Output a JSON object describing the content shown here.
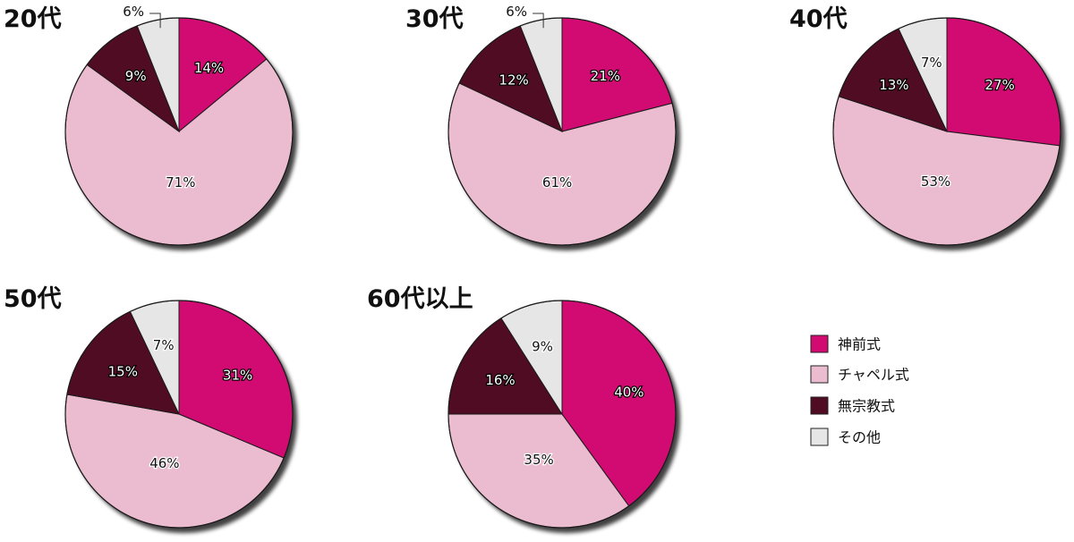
{
  "legend": [
    {
      "label": "神前式",
      "color": "#d10b72"
    },
    {
      "label": "チャペル式",
      "color": "#ebbcd0"
    },
    {
      "label": "無宗教式",
      "color": "#4f0c22"
    },
    {
      "label": "その他",
      "color": "#e6e6e6"
    }
  ],
  "chart_data": [
    {
      "type": "pie",
      "title": "20代",
      "categories": [
        "神前式",
        "チャペル式",
        "無宗教式",
        "その他"
      ],
      "values": [
        14,
        71,
        9,
        6
      ],
      "labels": [
        "14%",
        "71%",
        "9%",
        "6%"
      ]
    },
    {
      "type": "pie",
      "title": "30代",
      "categories": [
        "神前式",
        "チャペル式",
        "無宗教式",
        "その他"
      ],
      "values": [
        21,
        61,
        12,
        6
      ],
      "labels": [
        "21%",
        "61%",
        "12%",
        "6%"
      ]
    },
    {
      "type": "pie",
      "title": "40代",
      "categories": [
        "神前式",
        "チャペル式",
        "無宗教式",
        "その他"
      ],
      "values": [
        27,
        53,
        13,
        7
      ],
      "labels": [
        "27%",
        "53%",
        "13%",
        "7%"
      ]
    },
    {
      "type": "pie",
      "title": "50代",
      "categories": [
        "神前式",
        "チャペル式",
        "無宗教式",
        "その他"
      ],
      "values": [
        31,
        46,
        15,
        7
      ],
      "labels": [
        "31%",
        "46%",
        "15%",
        "7%"
      ]
    },
    {
      "type": "pie",
      "title": "60代以上",
      "categories": [
        "神前式",
        "チャペル式",
        "無宗教式",
        "その他"
      ],
      "values": [
        40,
        35,
        16,
        9
      ],
      "labels": [
        "40%",
        "35%",
        "16%",
        "9%"
      ]
    }
  ]
}
